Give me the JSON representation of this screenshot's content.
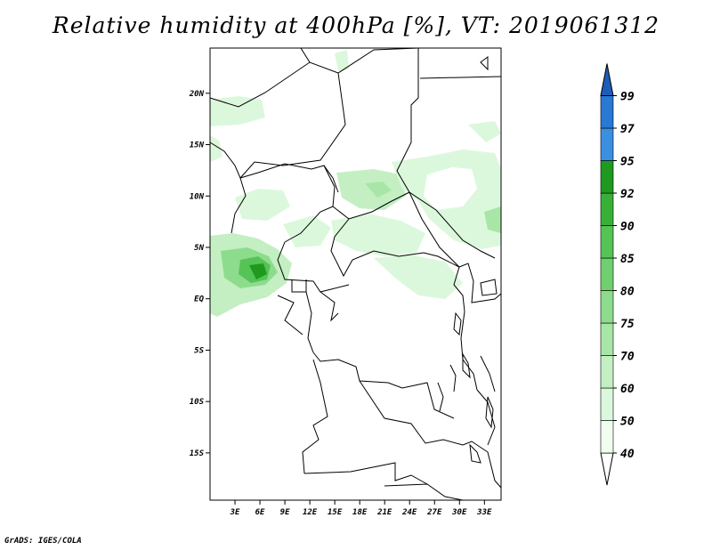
{
  "title": "Relative humidity at 400hPa [%], VT: 2019061312",
  "credit": "GrADS: IGES/COLA",
  "map": {
    "lat_labels": [
      "20N",
      "15N",
      "10N",
      "5N",
      "EQ",
      "5S",
      "10S",
      "15S"
    ],
    "lat_values": [
      20,
      15,
      10,
      5,
      0,
      -5,
      -10,
      -15
    ],
    "lon_labels": [
      "3E",
      "6E",
      "9E",
      "12E",
      "15E",
      "18E",
      "21E",
      "24E",
      "27E",
      "30E",
      "33E"
    ],
    "lon_values": [
      3,
      6,
      9,
      12,
      15,
      18,
      21,
      24,
      27,
      30,
      33
    ],
    "lon_range": [
      0,
      35
    ],
    "lat_range": [
      -19.6,
      24.4
    ]
  },
  "colorbar": {
    "labels": [
      "40",
      "50",
      "60",
      "70",
      "75",
      "80",
      "85",
      "90",
      "92",
      "95",
      "97",
      "99"
    ],
    "colors": [
      "#f0fff0",
      "#dcf8dc",
      "#c3efc3",
      "#a8e6a8",
      "#8ddc8d",
      "#70d070",
      "#55c355",
      "#38b038",
      "#1f9a1f",
      "#3b8fe0",
      "#2878d4",
      "#1e5cb8"
    ]
  }
}
